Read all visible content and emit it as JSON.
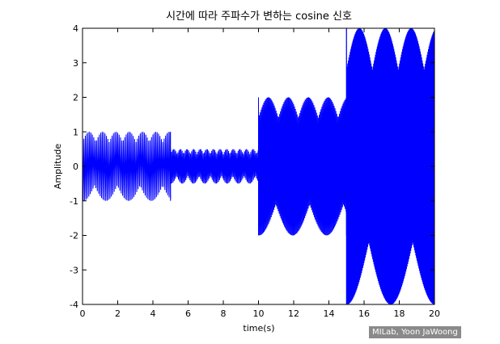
{
  "chart_data": {
    "type": "line",
    "title": "시간에 따라 주파수가 변하는 cosine 신호",
    "xlabel": "time(s)",
    "ylabel": "Amplitude",
    "xlim": [
      0,
      20
    ],
    "ylim": [
      -4,
      4
    ],
    "x_ticks": [
      "0",
      "2",
      "4",
      "6",
      "8",
      "10",
      "12",
      "14",
      "16",
      "18",
      "20"
    ],
    "y_ticks": [
      "4",
      "3",
      "2",
      "1",
      "0",
      "-1",
      "-2",
      "-3",
      "-4"
    ],
    "grid": false,
    "series_color": "#0000ff",
    "segments": [
      {
        "t_start": 0,
        "t_end": 5,
        "amplitude": 1
      },
      {
        "t_start": 5,
        "t_end": 10,
        "amplitude": 0.5
      },
      {
        "t_start": 10,
        "t_end": 15,
        "amplitude": 2
      },
      {
        "t_start": 15,
        "t_end": 20,
        "amplitude": 4
      }
    ]
  },
  "watermark": "MILab, Yoon JaWoong"
}
